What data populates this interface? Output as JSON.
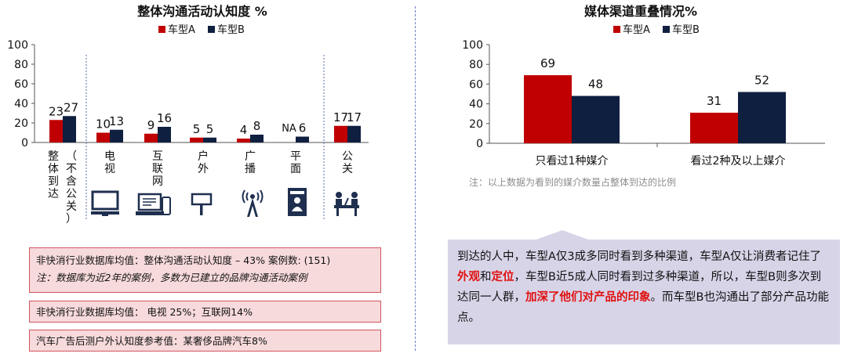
{
  "colors": {
    "car_a": "#c00000",
    "car_b": "#0f1f3f",
    "axis": "#555555",
    "note_box_bg": "#f7dadb",
    "note_box_border": "#d2555f",
    "summary_bg": "#d8d4e8",
    "highlight": "#e01010"
  },
  "chart_data": [
    {
      "type": "bar",
      "title": "整体沟通活动认知度 %",
      "legend": [
        "车型A",
        "车型B"
      ],
      "legend_position": "top",
      "ylim": [
        0,
        100
      ],
      "yticks": [
        0,
        20,
        40,
        60,
        80,
        100
      ],
      "categories": [
        "整体到达（不含公关）",
        "电视",
        "互联网",
        "户外",
        "广播",
        "平面",
        "公关"
      ],
      "category_label_lines": [
        [
          "整体到达",
          "（不含公关）"
        ],
        [
          "电",
          "视"
        ],
        [
          "互",
          "联",
          "网"
        ],
        [
          "户",
          "外"
        ],
        [
          "广",
          "播"
        ],
        [
          "平",
          "面"
        ],
        [
          "公",
          "关"
        ]
      ],
      "category_icons": [
        "",
        "tv-icon",
        "computer-devices-icon",
        "billboard-icon",
        "radio-tower-icon",
        "magazine-icon",
        "pr-event-icon"
      ],
      "series": [
        {
          "name": "车型A",
          "values": [
            23,
            10,
            9,
            5,
            4,
            null,
            17
          ],
          "labels": [
            "23",
            "10",
            "9",
            "5",
            "4",
            "NA",
            "17"
          ]
        },
        {
          "name": "车型B",
          "values": [
            27,
            13,
            16,
            5,
            8,
            6,
            17
          ],
          "labels": [
            "27",
            "13",
            "16",
            "5",
            "8",
            "6",
            "17"
          ]
        }
      ]
    },
    {
      "type": "bar",
      "title": "媒体渠道重叠情况%",
      "legend": [
        "车型A",
        "车型B"
      ],
      "legend_position": "top",
      "ylim": [
        0,
        100
      ],
      "yticks": [
        0,
        20,
        40,
        60,
        80,
        100
      ],
      "categories": [
        "只看过1种媒介",
        "看过2种及以上媒介"
      ],
      "series": [
        {
          "name": "车型A",
          "values": [
            69,
            31
          ]
        },
        {
          "name": "车型B",
          "values": [
            48,
            52
          ]
        }
      ]
    }
  ],
  "left_notes": {
    "box1_line1": "非快消行业数据库均值：整体沟通活动认知度 – 43%  案例数: (151)",
    "box1_line2": "注：数据库为近2年的案例，多数为已建立的品牌沟通活动案例",
    "box2": "非快消行业数据库均值： 电视 25%；互联网14%",
    "box3": "汽车广告后测户外认知度参考值：某奢侈品牌汽车8%"
  },
  "right_note": "注：以上数据为看到的媒介数量占整体到达的比例",
  "summary": {
    "part1": "到达的人中，车型A仅3成多同时看到多种渠道，车型A仅让消费者记住了",
    "hl1": "外观",
    "part2": "和",
    "hl2": "定位",
    "part3": "，车型B近5成人同时看到过多种渠道，所以，车型B则多次到达同一人群，",
    "hl3": "加深了他们对产品的印象",
    "part4": "。而车型B也沟通出了部分产品功能点。"
  }
}
